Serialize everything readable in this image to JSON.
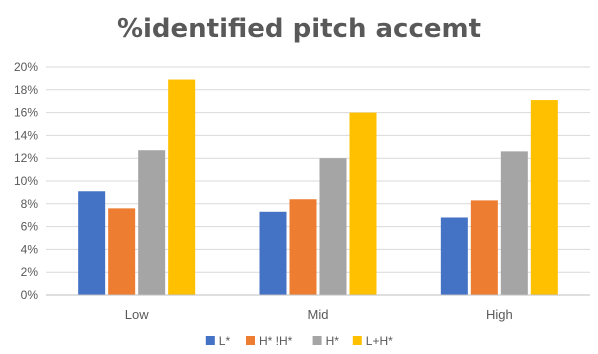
{
  "chart_data": {
    "type": "bar",
    "title": "%identified pitch accemt",
    "categories": [
      "Low",
      "Mid",
      "High"
    ],
    "series": [
      {
        "name": "L*",
        "color": "#4472c4",
        "values": [
          9.1,
          7.3,
          6.8
        ]
      },
      {
        "name": "H* !H*",
        "color": "#ed7d31",
        "values": [
          7.6,
          8.4,
          8.3
        ]
      },
      {
        "name": "H*",
        "color": "#a5a5a5",
        "values": [
          12.7,
          12.0,
          12.6
        ]
      },
      {
        "name": "L+H*",
        "color": "#ffc000",
        "values": [
          18.9,
          16.0,
          17.1
        ]
      }
    ],
    "ylim": [
      0,
      20
    ],
    "yticks": [
      "0%",
      "2%",
      "4%",
      "6%",
      "8%",
      "10%",
      "12%",
      "14%",
      "16%",
      "18%",
      "20%"
    ],
    "grid": true,
    "legend_position": "bottom"
  }
}
